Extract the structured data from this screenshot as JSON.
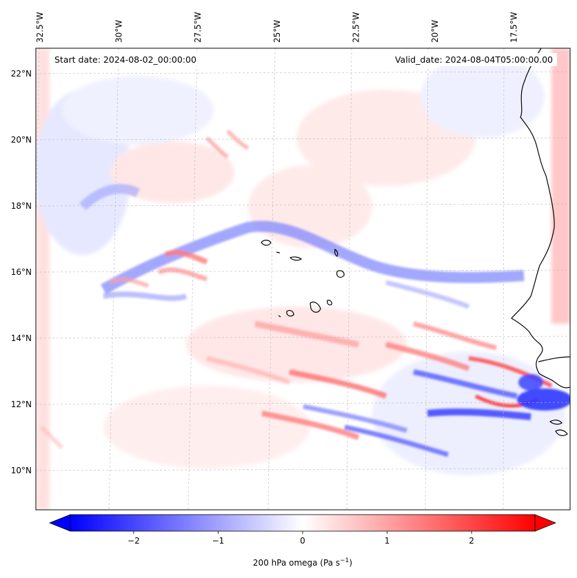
{
  "map": {
    "start_date": "Start date: 2024-08-02_00:00:00",
    "valid_date": "Valid_date: 2024-08-04T05:00:00.00",
    "lon_ticks": [
      {
        "label": "32.5°W",
        "lon": -32.5
      },
      {
        "label": "30°W",
        "lon": -30
      },
      {
        "label": "27.5°W",
        "lon": -27.5
      },
      {
        "label": "25°W",
        "lon": -25
      },
      {
        "label": "22.5°W",
        "lon": -22.5
      },
      {
        "label": "20°W",
        "lon": -20
      },
      {
        "label": "17.5°W",
        "lon": -17.5
      }
    ],
    "lat_ticks": [
      {
        "label": "22°N",
        "lat": 22
      },
      {
        "label": "20°N",
        "lat": 20
      },
      {
        "label": "18°N",
        "lat": 18
      },
      {
        "label": "16°N",
        "lat": 16
      },
      {
        "label": "14°N",
        "lat": 14
      },
      {
        "label": "12°N",
        "lat": 12
      },
      {
        "label": "10°N",
        "lat": 10
      }
    ],
    "field": "200 hPa omega",
    "colormap": "bwr",
    "colors": {
      "negative": "#0000ff",
      "zero": "#ffffff",
      "positive": "#ff0000",
      "coast": "#000000"
    }
  },
  "colorbar": {
    "label_prefix": "200 hPa omega (Pa s",
    "label_sup": "−1",
    "label_suffix": ")",
    "min": -2.75,
    "max": 2.75,
    "extend": "both",
    "ticks": [
      {
        "label": "−2",
        "value": -2
      },
      {
        "label": "−1",
        "value": -1
      },
      {
        "label": "0",
        "value": 0
      },
      {
        "label": "1",
        "value": 1
      },
      {
        "label": "2",
        "value": 2
      }
    ]
  }
}
